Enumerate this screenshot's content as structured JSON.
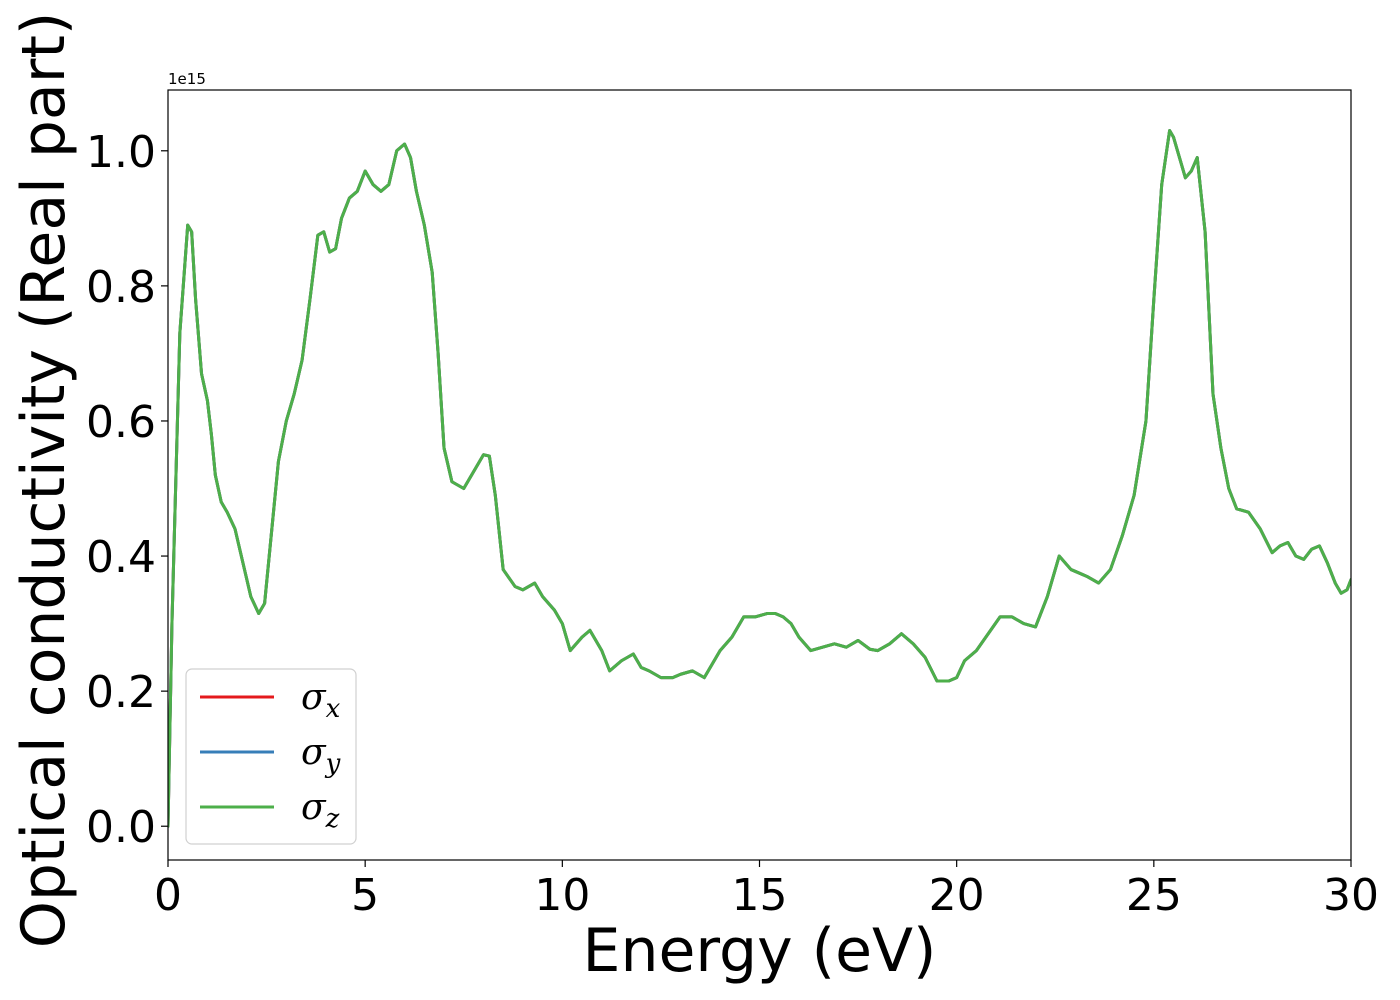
{
  "chart_data": {
    "type": "line",
    "title": "",
    "xlabel": "Energy (eV)",
    "ylabel": "Optical conductivity (Real part)",
    "y_offset_label": "1e15",
    "xlim": [
      0,
      30
    ],
    "ylim": [
      -0.05,
      1.09
    ],
    "y_scale_factor": 1000000000000000.0,
    "xticks": [
      0,
      5,
      10,
      15,
      20,
      25,
      30
    ],
    "yticks": [
      0.0,
      0.2,
      0.4,
      0.6,
      0.8,
      1.0
    ],
    "xtick_labels": [
      "0",
      "5",
      "10",
      "15",
      "20",
      "25",
      "30"
    ],
    "ytick_labels": [
      "0.0",
      "0.2",
      "0.4",
      "0.6",
      "0.8",
      "1.0"
    ],
    "grid": false,
    "legend_position": "lower-left",
    "x": [
      0.0,
      0.1,
      0.3,
      0.5,
      0.6,
      0.7,
      0.85,
      1.0,
      1.1,
      1.2,
      1.35,
      1.5,
      1.7,
      1.9,
      2.1,
      2.3,
      2.45,
      2.6,
      2.8,
      3.0,
      3.2,
      3.4,
      3.6,
      3.8,
      3.95,
      4.1,
      4.25,
      4.4,
      4.6,
      4.8,
      5.0,
      5.2,
      5.4,
      5.6,
      5.8,
      6.0,
      6.15,
      6.3,
      6.5,
      6.7,
      6.85,
      7.0,
      7.2,
      7.5,
      7.8,
      8.0,
      8.15,
      8.3,
      8.5,
      8.8,
      9.0,
      9.3,
      9.5,
      9.8,
      10.0,
      10.2,
      10.5,
      10.7,
      11.0,
      11.2,
      11.5,
      11.8,
      12.0,
      12.2,
      12.5,
      12.8,
      13.0,
      13.3,
      13.6,
      14.0,
      14.3,
      14.6,
      14.9,
      15.2,
      15.4,
      15.6,
      15.8,
      16.0,
      16.3,
      16.6,
      16.9,
      17.2,
      17.5,
      17.8,
      18.0,
      18.3,
      18.6,
      18.9,
      19.2,
      19.5,
      19.8,
      20.0,
      20.2,
      20.5,
      20.8,
      21.1,
      21.4,
      21.7,
      22.0,
      22.3,
      22.6,
      22.9,
      23.1,
      23.3,
      23.6,
      23.9,
      24.2,
      24.5,
      24.8,
      25.0,
      25.2,
      25.4,
      25.5,
      25.65,
      25.8,
      25.95,
      26.1,
      26.3,
      26.5,
      26.7,
      26.9,
      27.1,
      27.4,
      27.7,
      28.0,
      28.2,
      28.4,
      28.6,
      28.8,
      29.0,
      29.2,
      29.4,
      29.6,
      29.75,
      29.9,
      30.0
    ],
    "series": [
      {
        "name": "σ_x",
        "color": "#e41a1c",
        "values": [
          0.0,
          0.3,
          0.73,
          0.89,
          0.88,
          0.78,
          0.67,
          0.63,
          0.58,
          0.52,
          0.48,
          0.465,
          0.44,
          0.39,
          0.34,
          0.315,
          0.33,
          0.42,
          0.54,
          0.6,
          0.64,
          0.69,
          0.78,
          0.875,
          0.88,
          0.85,
          0.855,
          0.9,
          0.93,
          0.94,
          0.97,
          0.95,
          0.94,
          0.95,
          1.0,
          1.01,
          0.99,
          0.94,
          0.89,
          0.82,
          0.7,
          0.56,
          0.51,
          0.5,
          0.53,
          0.55,
          0.548,
          0.49,
          0.38,
          0.355,
          0.35,
          0.36,
          0.34,
          0.32,
          0.3,
          0.26,
          0.28,
          0.29,
          0.26,
          0.23,
          0.245,
          0.255,
          0.235,
          0.23,
          0.22,
          0.22,
          0.225,
          0.23,
          0.22,
          0.26,
          0.28,
          0.31,
          0.31,
          0.315,
          0.315,
          0.31,
          0.3,
          0.28,
          0.26,
          0.265,
          0.27,
          0.265,
          0.275,
          0.262,
          0.26,
          0.27,
          0.285,
          0.27,
          0.25,
          0.215,
          0.215,
          0.22,
          0.245,
          0.26,
          0.285,
          0.31,
          0.31,
          0.3,
          0.295,
          0.34,
          0.4,
          0.38,
          0.375,
          0.37,
          0.36,
          0.38,
          0.43,
          0.49,
          0.6,
          0.78,
          0.95,
          1.03,
          1.02,
          0.99,
          0.96,
          0.97,
          0.99,
          0.88,
          0.64,
          0.56,
          0.5,
          0.47,
          0.465,
          0.44,
          0.405,
          0.415,
          0.42,
          0.4,
          0.395,
          0.41,
          0.415,
          0.39,
          0.36,
          0.345,
          0.35,
          0.365
        ]
      },
      {
        "name": "σ_y",
        "color": "#377eb8",
        "values": [
          0.0,
          0.3,
          0.73,
          0.89,
          0.88,
          0.78,
          0.67,
          0.63,
          0.58,
          0.52,
          0.48,
          0.465,
          0.44,
          0.39,
          0.34,
          0.315,
          0.33,
          0.42,
          0.54,
          0.6,
          0.64,
          0.69,
          0.78,
          0.875,
          0.88,
          0.85,
          0.855,
          0.9,
          0.93,
          0.94,
          0.97,
          0.95,
          0.94,
          0.95,
          1.0,
          1.01,
          0.99,
          0.94,
          0.89,
          0.82,
          0.7,
          0.56,
          0.51,
          0.5,
          0.53,
          0.55,
          0.548,
          0.49,
          0.38,
          0.355,
          0.35,
          0.36,
          0.34,
          0.32,
          0.3,
          0.26,
          0.28,
          0.29,
          0.26,
          0.23,
          0.245,
          0.255,
          0.235,
          0.23,
          0.22,
          0.22,
          0.225,
          0.23,
          0.22,
          0.26,
          0.28,
          0.31,
          0.31,
          0.315,
          0.315,
          0.31,
          0.3,
          0.28,
          0.26,
          0.265,
          0.27,
          0.265,
          0.275,
          0.262,
          0.26,
          0.27,
          0.285,
          0.27,
          0.25,
          0.215,
          0.215,
          0.22,
          0.245,
          0.26,
          0.285,
          0.31,
          0.31,
          0.3,
          0.295,
          0.34,
          0.4,
          0.38,
          0.375,
          0.37,
          0.36,
          0.38,
          0.43,
          0.49,
          0.6,
          0.78,
          0.95,
          1.03,
          1.02,
          0.99,
          0.96,
          0.97,
          0.99,
          0.88,
          0.64,
          0.56,
          0.5,
          0.47,
          0.465,
          0.44,
          0.405,
          0.415,
          0.42,
          0.4,
          0.395,
          0.41,
          0.415,
          0.39,
          0.36,
          0.345,
          0.35,
          0.365
        ]
      },
      {
        "name": "σ_z",
        "color": "#4daf4a",
        "values": [
          0.0,
          0.3,
          0.73,
          0.89,
          0.88,
          0.78,
          0.67,
          0.63,
          0.58,
          0.52,
          0.48,
          0.465,
          0.44,
          0.39,
          0.34,
          0.315,
          0.33,
          0.42,
          0.54,
          0.6,
          0.64,
          0.69,
          0.78,
          0.875,
          0.88,
          0.85,
          0.855,
          0.9,
          0.93,
          0.94,
          0.97,
          0.95,
          0.94,
          0.95,
          1.0,
          1.01,
          0.99,
          0.94,
          0.89,
          0.82,
          0.7,
          0.56,
          0.51,
          0.5,
          0.53,
          0.55,
          0.548,
          0.49,
          0.38,
          0.355,
          0.35,
          0.36,
          0.34,
          0.32,
          0.3,
          0.26,
          0.28,
          0.29,
          0.26,
          0.23,
          0.245,
          0.255,
          0.235,
          0.23,
          0.22,
          0.22,
          0.225,
          0.23,
          0.22,
          0.26,
          0.28,
          0.31,
          0.31,
          0.315,
          0.315,
          0.31,
          0.3,
          0.28,
          0.26,
          0.265,
          0.27,
          0.265,
          0.275,
          0.262,
          0.26,
          0.27,
          0.285,
          0.27,
          0.25,
          0.215,
          0.215,
          0.22,
          0.245,
          0.26,
          0.285,
          0.31,
          0.31,
          0.3,
          0.295,
          0.34,
          0.4,
          0.38,
          0.375,
          0.37,
          0.36,
          0.38,
          0.43,
          0.49,
          0.6,
          0.78,
          0.95,
          1.03,
          1.02,
          0.99,
          0.96,
          0.97,
          0.99,
          0.88,
          0.64,
          0.56,
          0.5,
          0.47,
          0.465,
          0.44,
          0.405,
          0.415,
          0.42,
          0.4,
          0.395,
          0.41,
          0.415,
          0.39,
          0.36,
          0.345,
          0.35,
          0.365
        ]
      }
    ],
    "legend": [
      {
        "symbol": "σ",
        "subscript": "x",
        "color": "#e41a1c"
      },
      {
        "symbol": "σ",
        "subscript": "y",
        "color": "#377eb8"
      },
      {
        "symbol": "σ",
        "subscript": "z",
        "color": "#4daf4a"
      }
    ]
  }
}
